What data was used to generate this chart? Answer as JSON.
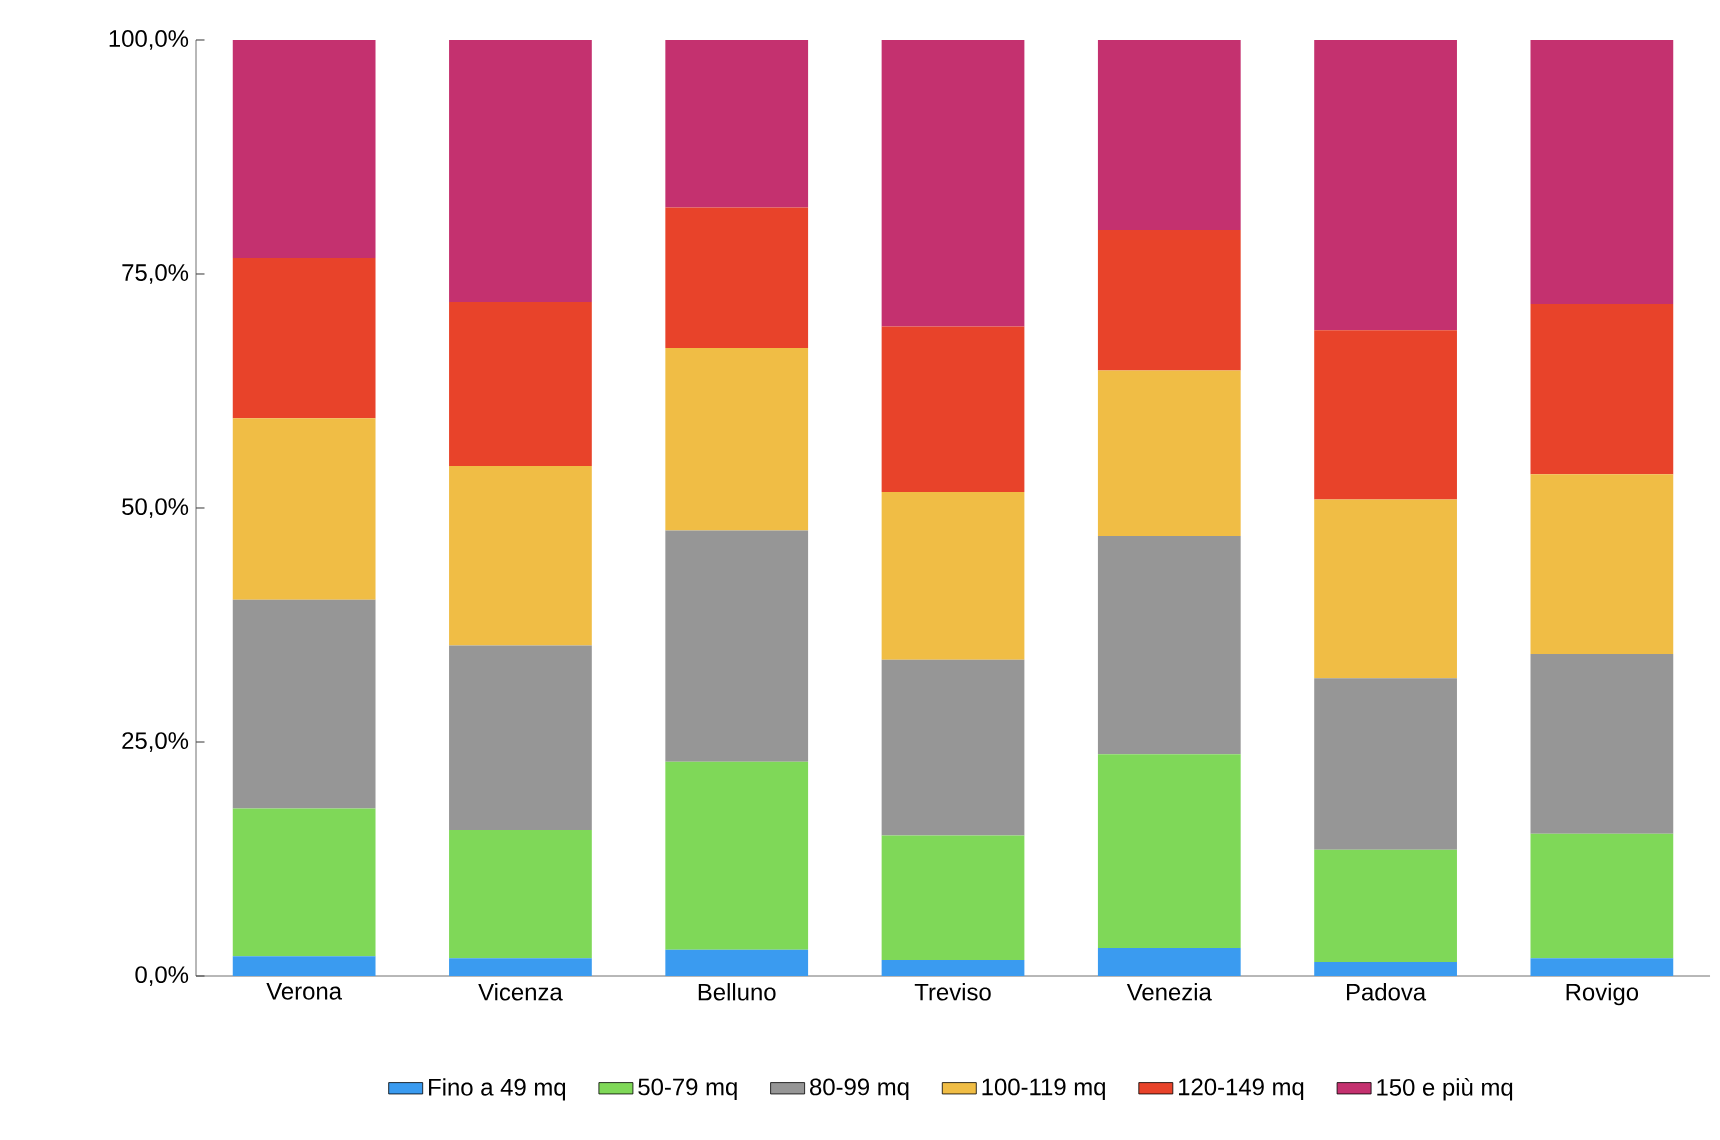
{
  "chart_data": {
    "type": "bar",
    "stacked": true,
    "categories": [
      "Verona",
      "Vicenza",
      "Belluno",
      "Treviso",
      "Venezia",
      "Padova",
      "Rovigo"
    ],
    "series": [
      {
        "name": "Fino a 49 mq",
        "color": "#3a9bf0",
        "values": [
          2.1,
          1.9,
          2.8,
          1.7,
          3.0,
          1.5,
          1.9
        ]
      },
      {
        "name": "50-79 mq",
        "color": "#7fd858",
        "values": [
          15.8,
          13.7,
          20.1,
          13.3,
          20.7,
          12.0,
          13.3
        ]
      },
      {
        "name": "80-99 mq",
        "color": "#969696",
        "values": [
          22.3,
          19.7,
          24.7,
          18.8,
          23.3,
          18.3,
          19.2
        ]
      },
      {
        "name": "100-119 mq",
        "color": "#f0bd45",
        "values": [
          19.4,
          19.2,
          19.5,
          17.9,
          17.7,
          19.1,
          19.2
        ]
      },
      {
        "name": "120-149 mq",
        "color": "#e8432a",
        "values": [
          17.1,
          17.5,
          15.0,
          17.7,
          15.0,
          18.1,
          18.2
        ]
      },
      {
        "name": "150 e più mq",
        "color": "#c4316f",
        "values": [
          23.3,
          28.0,
          17.9,
          30.6,
          20.3,
          31.0,
          28.2
        ]
      }
    ],
    "ylim": [
      0,
      100
    ],
    "yticks": [
      {
        "value": 0,
        "label": "0,0%"
      },
      {
        "value": 25,
        "label": "25,0%"
      },
      {
        "value": 50,
        "label": "50,0%"
      },
      {
        "value": 75,
        "label": "75,0%"
      },
      {
        "value": 100,
        "label": "100,0%"
      }
    ],
    "legend": "bottom",
    "grid": false
  }
}
